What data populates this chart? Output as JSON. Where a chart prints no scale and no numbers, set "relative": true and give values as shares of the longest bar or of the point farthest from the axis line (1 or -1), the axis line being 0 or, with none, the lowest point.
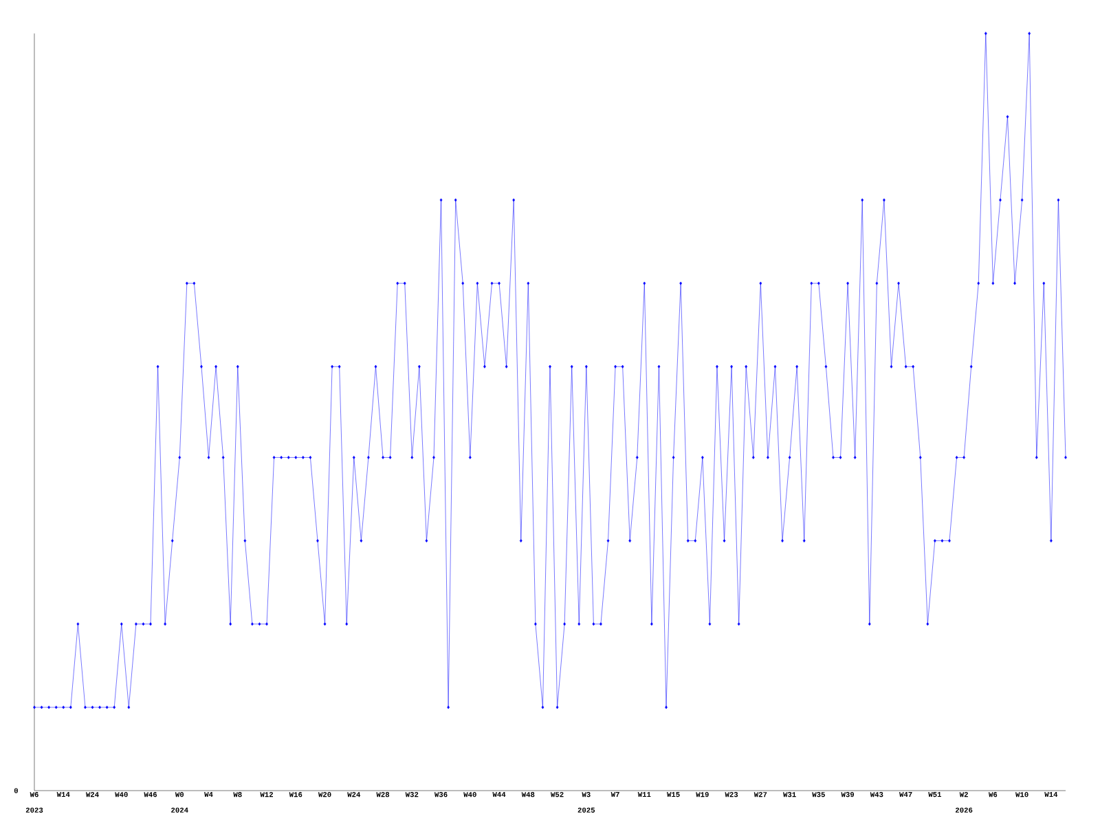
{
  "chart_data": {
    "type": "line",
    "relative": true,
    "color": "#0000ff",
    "marker": "diamond",
    "line_style": "solid",
    "grid": false,
    "categories": [
      "W6",
      null,
      null,
      null,
      "W14",
      null,
      null,
      null,
      "W24",
      null,
      null,
      null,
      "W40",
      null,
      null,
      null,
      "W46",
      null,
      null,
      null,
      "W0",
      null,
      null,
      null,
      "W4",
      null,
      null,
      null,
      "W8",
      null,
      null,
      null,
      "W12",
      null,
      null,
      null,
      "W16",
      null,
      null,
      null,
      "W20",
      null,
      null,
      null,
      "W24",
      null,
      null,
      null,
      "W28",
      null,
      null,
      null,
      "W32",
      null,
      null,
      null,
      "W36",
      null,
      null,
      null,
      "W40",
      null,
      null,
      null,
      "W44",
      null,
      null,
      null,
      "W48",
      null,
      null,
      null,
      "W52",
      null,
      null,
      null,
      "W3",
      null,
      null,
      null,
      "W7",
      null,
      null,
      null,
      "W11",
      null,
      null,
      null,
      "W15",
      null,
      null,
      null,
      "W19",
      null,
      null,
      null,
      "W23",
      null,
      null,
      null,
      "W27",
      null,
      null,
      null,
      "W31",
      null,
      null,
      null,
      "W35",
      null,
      null,
      null,
      "W39",
      null,
      null,
      null,
      "W43",
      null,
      null,
      null,
      "W47",
      null,
      null,
      null,
      "W51",
      null,
      null,
      null,
      "W2",
      null,
      null,
      null,
      "W6",
      null,
      null,
      null,
      "W10",
      null,
      null,
      null,
      "W14",
      null,
      null
    ],
    "values": [
      0.11,
      0.11,
      0.11,
      0.11,
      0.11,
      0.11,
      0.22,
      0.11,
      0.11,
      0.11,
      0.11,
      0.11,
      0.22,
      0.11,
      0.22,
      0.22,
      0.22,
      0.56,
      0.22,
      0.33,
      0.44,
      0.67,
      0.67,
      0.56,
      0.44,
      0.56,
      0.44,
      0.22,
      0.56,
      0.33,
      0.22,
      0.22,
      0.22,
      0.44,
      0.44,
      0.44,
      0.44,
      0.44,
      0.44,
      0.33,
      0.22,
      0.56,
      0.56,
      0.22,
      0.44,
      0.33,
      0.44,
      0.56,
      0.44,
      0.44,
      0.67,
      0.67,
      0.44,
      0.56,
      0.33,
      0.44,
      0.78,
      0.11,
      0.78,
      0.67,
      0.44,
      0.67,
      0.56,
      0.67,
      0.67,
      0.56,
      0.78,
      0.33,
      0.67,
      0.22,
      0.11,
      0.56,
      0.11,
      0.22,
      0.56,
      0.22,
      0.56,
      0.22,
      0.22,
      0.33,
      0.56,
      0.56,
      0.33,
      0.44,
      0.67,
      0.22,
      0.56,
      0.11,
      0.44,
      0.67,
      0.33,
      0.33,
      0.44,
      0.22,
      0.56,
      0.33,
      0.56,
      0.22,
      0.56,
      0.44,
      0.67,
      0.44,
      0.56,
      0.33,
      0.44,
      0.56,
      0.33,
      0.67,
      0.67,
      0.56,
      0.44,
      0.44,
      0.67,
      0.44,
      0.78,
      0.22,
      0.67,
      0.78,
      0.56,
      0.67,
      0.56,
      0.56,
      0.44,
      0.22,
      0.33,
      0.33,
      0.33,
      0.44,
      0.44,
      0.56,
      0.67,
      1,
      0.67,
      0.78,
      0.89,
      0.67,
      0.78,
      1,
      0.44,
      0.67,
      0.33,
      0.78,
      0.44
    ],
    "annotations": [
      "0",
      "2023",
      "2024",
      "2025",
      "2026"
    ]
  }
}
